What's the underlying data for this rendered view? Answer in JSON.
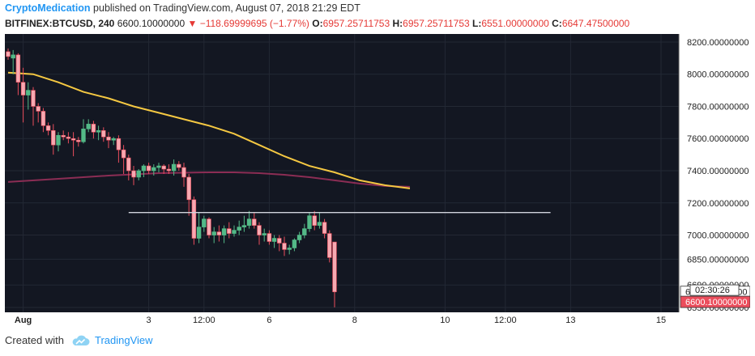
{
  "header": {
    "author": "CryptoMedication",
    "published_text": "published on TradingView.com, August 07, 2018 21:29 EDT"
  },
  "ticker": {
    "symbol": "BITFINEX:BTCUSD, 240",
    "price": "6600.10000000",
    "change": "−118.69999695 (−1.77%)",
    "open_label": "O:",
    "open": "6957.25711753",
    "high_label": "H:",
    "high": "6957.25711753",
    "low_label": "L:",
    "low": "6551.00000000",
    "close_label": "C:",
    "close": "6647.47500000"
  },
  "footer": {
    "created_with": "Created with",
    "brand": "TradingView"
  },
  "colors": {
    "background": "#131722",
    "up": "#53b987",
    "down": "#eb4d5c",
    "ma_fast": "#f5c842",
    "ma_slow": "#8b2d54",
    "level": "#d1d4dc"
  },
  "chart_data": {
    "type": "candlestick",
    "ylim": [
      6520,
      8250
    ],
    "y_ticks": [
      "8200.00000000",
      "8000.00000000",
      "7800.00000000",
      "7600.00000000",
      "7400.00000000",
      "7200.00000000",
      "7000.00000000",
      "6850.00000000",
      "6690.00000000",
      "6550.00000000"
    ],
    "y_tick_values": [
      8200,
      8000,
      7800,
      7600,
      7400,
      7200,
      7000,
      6850,
      6690,
      6550
    ],
    "x_ticks": [
      {
        "label": "Aug",
        "t": 3
      },
      {
        "label": "3",
        "t": 28
      },
      {
        "label": "12:00",
        "t": 39
      },
      {
        "label": "6",
        "t": 52
      },
      {
        "label": "8",
        "t": 69
      },
      {
        "label": "10",
        "t": 87
      },
      {
        "label": "12:00",
        "t": 99
      },
      {
        "label": "13",
        "t": 112
      },
      {
        "label": "15",
        "t": 130
      }
    ],
    "price_labels": {
      "last": "6647.47500000",
      "countdown": "02:30:26",
      "current": "6600.10000000"
    },
    "candles": [
      [
        8140,
        8160,
        8090,
        8110
      ],
      [
        8100,
        8150,
        8000,
        8120
      ],
      [
        8120,
        8130,
        7870,
        7950
      ],
      [
        7950,
        8040,
        7700,
        7870
      ],
      [
        7870,
        7950,
        7780,
        7900
      ],
      [
        7900,
        7920,
        7680,
        7800
      ],
      [
        7800,
        7820,
        7700,
        7770
      ],
      [
        7770,
        7790,
        7640,
        7680
      ],
      [
        7680,
        7700,
        7620,
        7650
      ],
      [
        7650,
        7690,
        7500,
        7560
      ],
      [
        7560,
        7640,
        7520,
        7620
      ],
      [
        7620,
        7650,
        7590,
        7610
      ],
      [
        7610,
        7640,
        7570,
        7600
      ],
      [
        7600,
        7640,
        7490,
        7590
      ],
      [
        7590,
        7610,
        7550,
        7580
      ],
      [
        7580,
        7720,
        7570,
        7660
      ],
      [
        7660,
        7720,
        7640,
        7690
      ],
      [
        7690,
        7710,
        7600,
        7640
      ],
      [
        7640,
        7680,
        7590,
        7650
      ],
      [
        7650,
        7670,
        7580,
        7610
      ],
      [
        7610,
        7640,
        7540,
        7590
      ],
      [
        7590,
        7610,
        7560,
        7600
      ],
      [
        7600,
        7620,
        7450,
        7530
      ],
      [
        7530,
        7560,
        7380,
        7480
      ],
      [
        7480,
        7500,
        7340,
        7400
      ],
      [
        7400,
        7430,
        7310,
        7360
      ],
      [
        7360,
        7410,
        7340,
        7400
      ],
      [
        7400,
        7440,
        7360,
        7430
      ],
      [
        7430,
        7450,
        7380,
        7400
      ],
      [
        7400,
        7440,
        7370,
        7420
      ],
      [
        7420,
        7450,
        7390,
        7430
      ],
      [
        7430,
        7440,
        7380,
        7410
      ],
      [
        7410,
        7440,
        7380,
        7400
      ],
      [
        7400,
        7470,
        7370,
        7440
      ],
      [
        7440,
        7460,
        7400,
        7420
      ],
      [
        7420,
        7450,
        7300,
        7360
      ],
      [
        7360,
        7380,
        7120,
        7220
      ],
      [
        7220,
        7240,
        6940,
        6980
      ],
      [
        6980,
        7140,
        6950,
        7050
      ],
      [
        7050,
        7120,
        7020,
        7100
      ],
      [
        7100,
        7110,
        6980,
        7000
      ],
      [
        7000,
        7050,
        6950,
        7020
      ],
      [
        7020,
        7060,
        6960,
        7000
      ],
      [
        7000,
        7060,
        6950,
        7040
      ],
      [
        7040,
        7080,
        6980,
        7010
      ],
      [
        7010,
        7060,
        6990,
        7030
      ],
      [
        7030,
        7090,
        7000,
        7050
      ],
      [
        7050,
        7120,
        7020,
        7060
      ],
      [
        7060,
        7150,
        7040,
        7100
      ],
      [
        7100,
        7140,
        7040,
        7060
      ],
      [
        7060,
        7080,
        6940,
        7000
      ],
      [
        7000,
        7040,
        6960,
        7010
      ],
      [
        7010,
        7030,
        6940,
        6960
      ],
      [
        6960,
        7000,
        6920,
        6980
      ],
      [
        6980,
        7000,
        6900,
        6950
      ],
      [
        6950,
        6990,
        6870,
        6910
      ],
      [
        6910,
        6940,
        6880,
        6920
      ],
      [
        6920,
        6980,
        6900,
        6970
      ],
      [
        6970,
        7020,
        6950,
        7000
      ],
      [
        7000,
        7070,
        6980,
        7040
      ],
      [
        7040,
        7140,
        7020,
        7120
      ],
      [
        7120,
        7150,
        7030,
        7060
      ],
      [
        7060,
        7140,
        7040,
        7080
      ],
      [
        7080,
        7100,
        6980,
        7010
      ],
      [
        7010,
        7030,
        6830,
        6860
      ],
      [
        6957,
        6957,
        6551,
        6647
      ]
    ],
    "ma_fast": [
      [
        0,
        8010
      ],
      [
        5,
        8000
      ],
      [
        10,
        7950
      ],
      [
        15,
        7890
      ],
      [
        20,
        7850
      ],
      [
        25,
        7800
      ],
      [
        30,
        7760
      ],
      [
        35,
        7720
      ],
      [
        40,
        7680
      ],
      [
        45,
        7630
      ],
      [
        50,
        7560
      ],
      [
        55,
        7490
      ],
      [
        60,
        7430
      ],
      [
        65,
        7390
      ],
      [
        70,
        7340
      ],
      [
        75,
        7310
      ],
      [
        80,
        7290
      ]
    ],
    "ma_slow": [
      [
        0,
        7330
      ],
      [
        10,
        7350
      ],
      [
        20,
        7370
      ],
      [
        30,
        7385
      ],
      [
        40,
        7390
      ],
      [
        45,
        7390
      ],
      [
        50,
        7385
      ],
      [
        55,
        7375
      ],
      [
        60,
        7360
      ],
      [
        65,
        7340
      ],
      [
        70,
        7320
      ],
      [
        75,
        7305
      ],
      [
        80,
        7300
      ]
    ],
    "level_line": {
      "value": 7140,
      "from": 24,
      "to": 108
    }
  }
}
